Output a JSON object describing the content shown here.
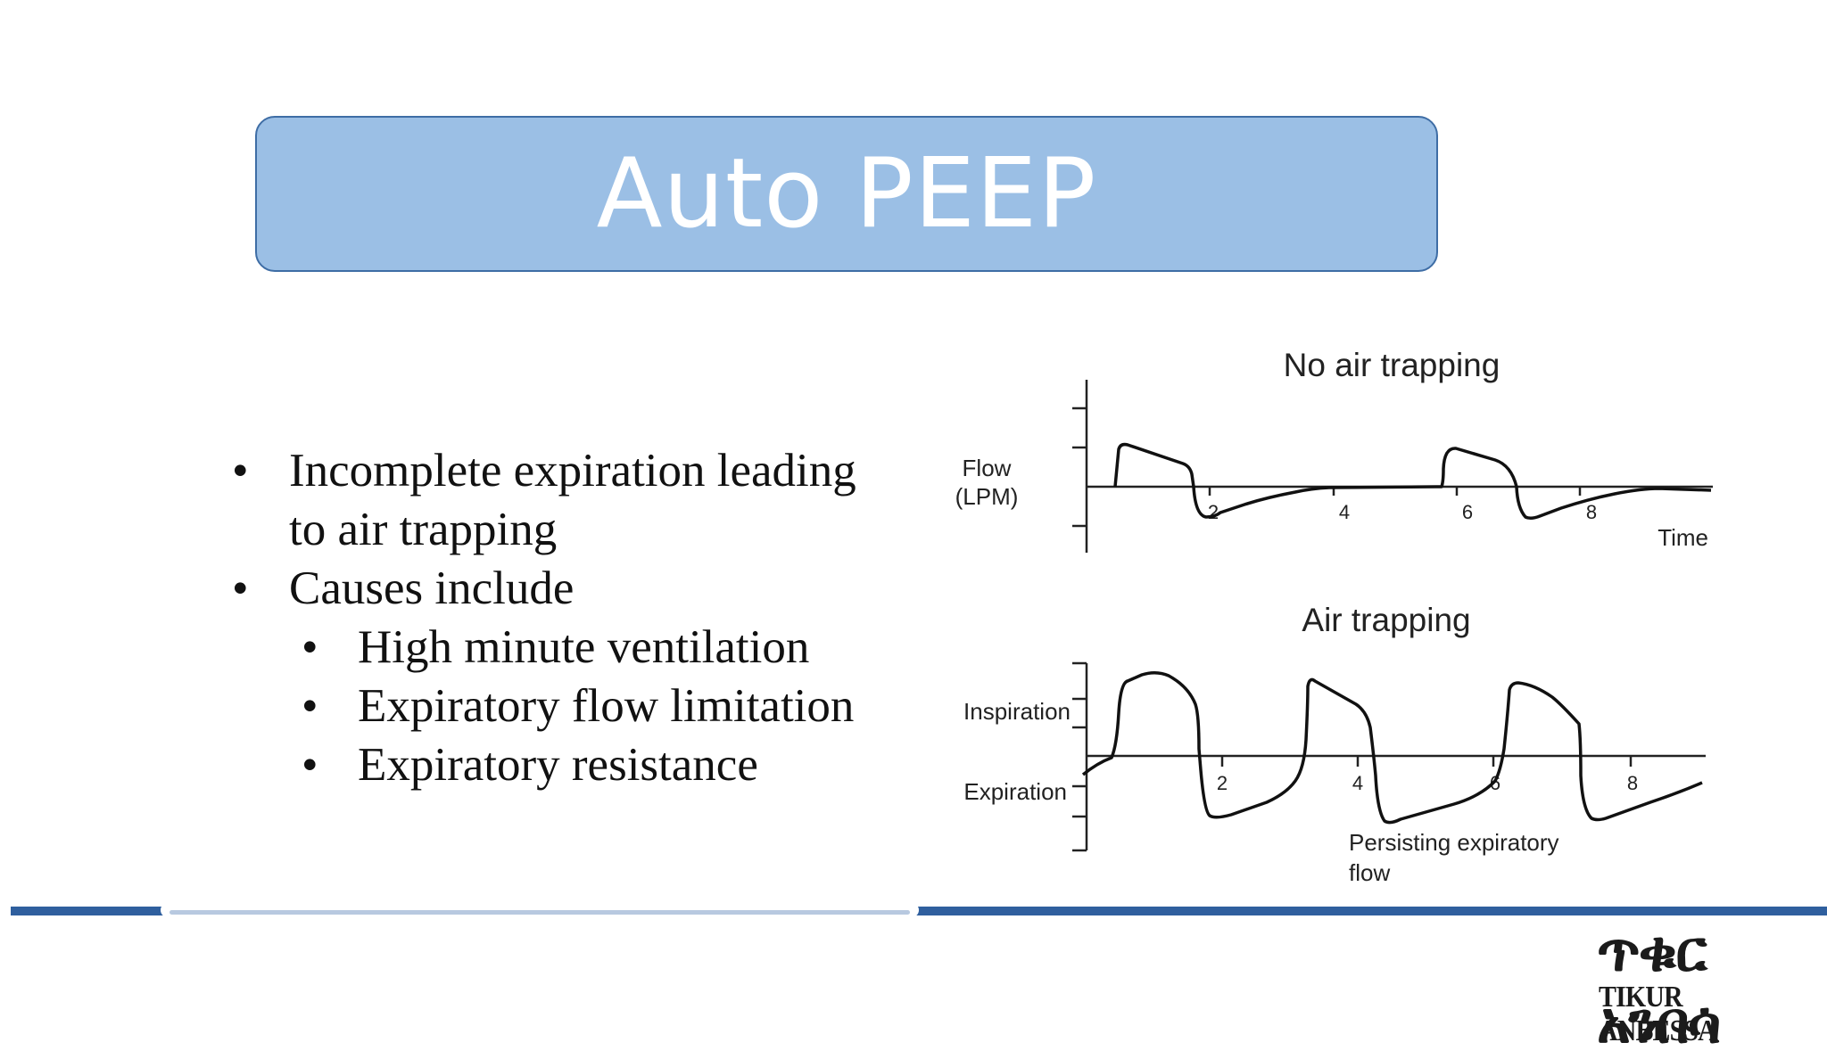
{
  "slide": {
    "title": "Auto PEEP",
    "bullets": [
      {
        "level": 1,
        "lines": [
          "Incomplete expiration leading",
          "to air trapping"
        ]
      },
      {
        "level": 1,
        "lines": [
          "Causes include"
        ]
      },
      {
        "level": 2,
        "lines": [
          "High minute ventilation"
        ]
      },
      {
        "level": 2,
        "lines": [
          "Expiratory flow limitation"
        ]
      },
      {
        "level": 2,
        "lines": [
          "Expiratory resistance"
        ]
      }
    ],
    "bullet_glyph": "•"
  },
  "diagram": {
    "top": {
      "title": "No air trapping",
      "ylabel_line1": "Flow",
      "ylabel_line2": "(LPM)",
      "xlabel": "Time",
      "ticks": [
        "2",
        "4",
        "6",
        "8"
      ]
    },
    "bottom": {
      "title": "Air trapping",
      "label_inspiration": "Inspiration",
      "label_expiration": "Expiration",
      "ticks": [
        "2",
        "4",
        "6",
        "8"
      ],
      "annotation_line1": "Persisting expiratory",
      "annotation_line2": "flow"
    }
  },
  "logo": {
    "ethiopic": "ጥቁር አንበሳ",
    "latin": "TIKUR ANBESSA"
  },
  "colors": {
    "title_fill": "#9bbfe5",
    "title_border": "#3e6da5",
    "footer_bar": "#2f5f9e"
  }
}
